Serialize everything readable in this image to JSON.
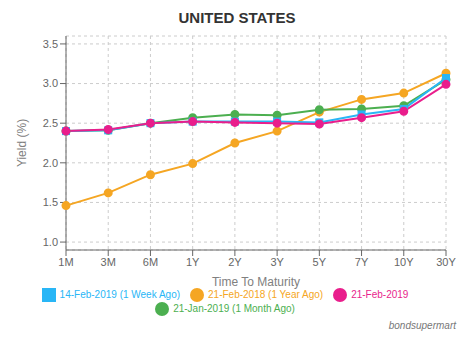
{
  "chart_data": {
    "type": "line",
    "title": "UNITED STATES",
    "x_label": "Time To Maturity",
    "y_label": "Yield (%)",
    "categories": [
      "1M",
      "3M",
      "6M",
      "1Y",
      "2Y",
      "3Y",
      "5Y",
      "7Y",
      "10Y",
      "30Y"
    ],
    "series": [
      {
        "name": "21-Feb-2018 (1 Year Ago)",
        "color": "#f5a623",
        "marker": "circle",
        "values": [
          1.46,
          1.62,
          1.85,
          1.99,
          2.25,
          2.4,
          2.64,
          2.8,
          2.88,
          3.13
        ]
      },
      {
        "name": "21-Jan-2019 (1 Month Ago)",
        "color": "#4caf50",
        "marker": "circle",
        "values": [
          2.4,
          2.41,
          2.5,
          2.57,
          2.61,
          2.6,
          2.67,
          2.68,
          2.72,
          3.05
        ]
      },
      {
        "name": "14-Feb-2019 (1 Week Ago)",
        "color": "#29b6f6",
        "marker": "square",
        "values": [
          2.4,
          2.41,
          2.5,
          2.52,
          2.52,
          2.52,
          2.51,
          2.61,
          2.68,
          3.07
        ]
      },
      {
        "name": "21-Feb-2019",
        "color": "#e91e8c",
        "marker": "circle",
        "values": [
          2.4,
          2.42,
          2.5,
          2.52,
          2.51,
          2.5,
          2.49,
          2.57,
          2.65,
          2.99
        ]
      }
    ],
    "ylim": [
      0.9,
      3.6
    ],
    "yticks": [
      {
        "value": 1,
        "label": "1.0"
      },
      1.5,
      {
        "value": 2,
        "label": "2.0"
      },
      2.5,
      {
        "value": 3,
        "label": "3.0"
      },
      3.5
    ],
    "grid": true,
    "legend": "bottom",
    "annotations": [
      "bondsupermart"
    ]
  }
}
